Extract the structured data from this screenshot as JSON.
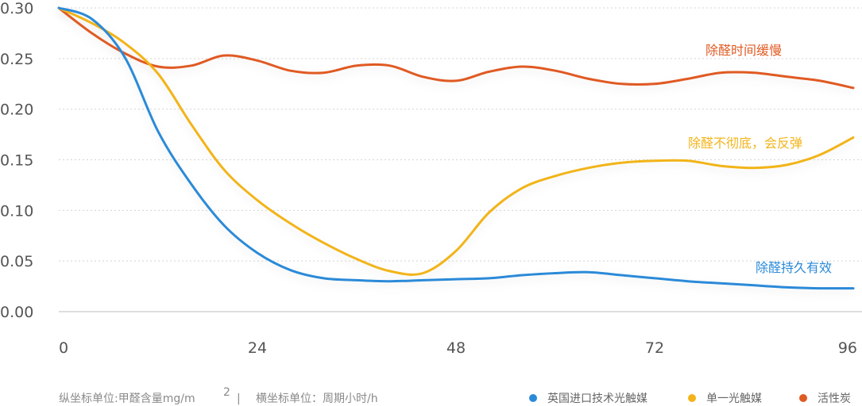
{
  "chart_data": {
    "type": "line",
    "x": [
      0,
      4,
      8,
      12,
      16,
      20,
      24,
      28,
      32,
      36,
      40,
      44,
      48,
      52,
      56,
      60,
      64,
      68,
      72,
      76,
      80,
      84,
      88,
      92,
      96
    ],
    "x_ticks": [
      "0",
      "24",
      "48",
      "72",
      "96"
    ],
    "y_ticks": [
      "0.00",
      "0.05",
      "0.10",
      "0.15",
      "0.20",
      "0.25",
      "0.30"
    ],
    "ylim": [
      0,
      0.3
    ],
    "xlim": [
      0,
      96
    ],
    "grid": true,
    "series": [
      {
        "name": "英国进口技术光触媒",
        "color": "#2b8ad8",
        "values": [
          0.3,
          0.289,
          0.251,
          0.178,
          0.126,
          0.085,
          0.058,
          0.041,
          0.033,
          0.031,
          0.03,
          0.031,
          0.032,
          0.033,
          0.036,
          0.038,
          0.039,
          0.036,
          0.033,
          0.03,
          0.028,
          0.026,
          0.024,
          0.023,
          0.023
        ]
      },
      {
        "name": "单一光触媒",
        "color": "#f2b418",
        "values": [
          0.3,
          0.285,
          0.265,
          0.235,
          0.185,
          0.14,
          0.11,
          0.087,
          0.068,
          0.052,
          0.04,
          0.038,
          0.06,
          0.098,
          0.122,
          0.134,
          0.142,
          0.147,
          0.149,
          0.149,
          0.144,
          0.142,
          0.145,
          0.155,
          0.172
        ]
      },
      {
        "name": "活性炭",
        "color": "#e05a23",
        "values": [
          0.3,
          0.275,
          0.255,
          0.242,
          0.243,
          0.253,
          0.248,
          0.238,
          0.236,
          0.243,
          0.243,
          0.232,
          0.228,
          0.237,
          0.242,
          0.238,
          0.23,
          0.225,
          0.225,
          0.23,
          0.236,
          0.236,
          0.232,
          0.228,
          0.221
        ]
      }
    ],
    "annotations": [
      {
        "text": "除醛时间缓慢",
        "series": 2,
        "color": "#e05a23"
      },
      {
        "text": "除醛不彻底，会反弹",
        "series": 1,
        "color": "#f2b418"
      },
      {
        "text": "除醛持久有效",
        "series": 0,
        "color": "#2b8ad8"
      }
    ],
    "legend_position": "bottom-right"
  },
  "footer": {
    "y_unit_label": "纵坐标单位:甲醛含量mg/m",
    "y_unit_sup": "2",
    "separator": "|",
    "x_unit_label": "横坐标单位：周期小时/h"
  }
}
